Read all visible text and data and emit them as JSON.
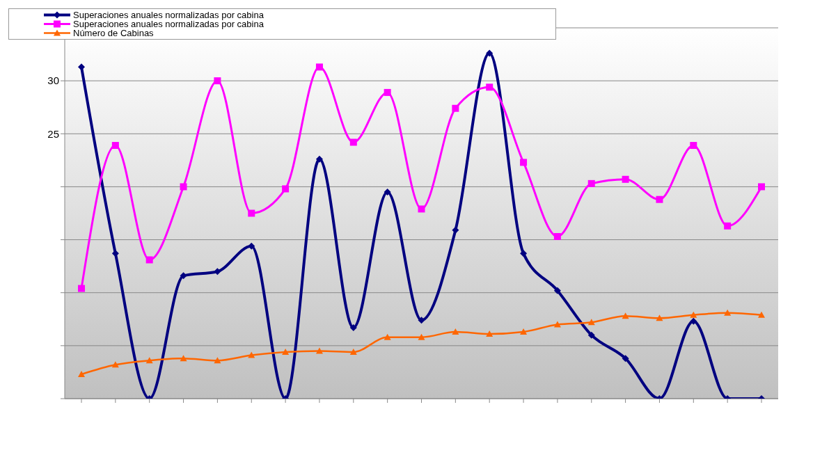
{
  "chart_data": {
    "type": "line",
    "categories": [
      null,
      null,
      null,
      null,
      null,
      null,
      null,
      null,
      null,
      null,
      null,
      null,
      null,
      null,
      null,
      null,
      null,
      null,
      null,
      null,
      null
    ],
    "ylim": [
      0,
      35
    ],
    "yticks": [
      {
        "value": 0,
        "label": null
      },
      {
        "value": 5,
        "label": null
      },
      {
        "value": 10,
        "label": null
      },
      {
        "value": 15,
        "label": null
      },
      {
        "value": 20,
        "label": null
      },
      25,
      30,
      {
        "value": 35,
        "label": null
      }
    ],
    "grid": "y",
    "legend": "top left",
    "line_style": "solid",
    "series": [
      {
        "name": "Superaciones anuales normalizadas por cabina",
        "color": "#000080",
        "marker": "diamond",
        "values": [
          31.3,
          13.7,
          0,
          11.6,
          12.0,
          14.4,
          0,
          22.6,
          6.7,
          19.5,
          7.4,
          15.9,
          32.6,
          13.7,
          10.2,
          6.0,
          3.8,
          0,
          7.3,
          0,
          0
        ]
      },
      {
        "name": "Superaciones anuales normalizadas por cabina",
        "color": "#ff00ff",
        "marker": "square",
        "values": [
          10.4,
          23.9,
          13.1,
          20.0,
          30.0,
          17.5,
          19.8,
          31.3,
          24.2,
          28.9,
          17.9,
          27.4,
          29.4,
          22.3,
          15.3,
          20.3,
          20.7,
          18.8,
          23.9,
          16.3,
          20.0
        ]
      },
      {
        "name": "Número de Cabinas",
        "color": "#ff6600",
        "marker": "triangle",
        "values": [
          2.3,
          3.2,
          3.6,
          3.8,
          3.6,
          4.1,
          4.4,
          4.5,
          4.4,
          5.8,
          5.8,
          6.3,
          6.1,
          6.3,
          7.0,
          7.2,
          7.8,
          7.6,
          7.9,
          8.1,
          7.9
        ]
      }
    ]
  }
}
